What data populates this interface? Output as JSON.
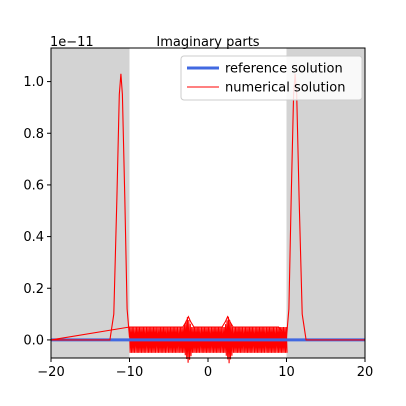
{
  "chart_data": {
    "type": "line",
    "title": "Imaginary parts",
    "xlabel": "",
    "ylabel": "",
    "scale_label": "1e−11",
    "xlim": [
      -20,
      20
    ],
    "ylim": [
      -0.07,
      1.13
    ],
    "xticks": [
      -20,
      -10,
      0,
      10,
      20
    ],
    "xtick_labels": [
      "−20",
      "−10",
      "0",
      "10",
      "20"
    ],
    "yticks": [
      0.0,
      0.2,
      0.4,
      0.6,
      0.8,
      1.0
    ],
    "ytick_labels": [
      "0.0",
      "0.2",
      "0.4",
      "0.6",
      "0.8",
      "1.0"
    ],
    "shaded_regions": [
      [
        -20,
        -10
      ],
      [
        10,
        20
      ]
    ],
    "shade_color": "#d3d3d3",
    "legend_position": "top-right",
    "series": [
      {
        "name": "reference solution",
        "color": "#4169e1",
        "x": [
          -20,
          20
        ],
        "y": [
          0,
          0
        ]
      },
      {
        "name": "numerical solution",
        "color": "#ff0000",
        "x": [
          -20,
          -12.5,
          -12.0,
          -11.6,
          -11.3,
          -11.1,
          -10.9,
          -10.6,
          -10.3,
          -10.0,
          -20,
          -10.0,
          -9.0,
          -8.0,
          -7.0,
          -6.0,
          -5.0,
          -4.0,
          -3.2,
          -2.8,
          -2.5,
          -2.2,
          -1.8,
          -1.0,
          0.0,
          1.0,
          1.8,
          2.2,
          2.5,
          2.8,
          3.2,
          4.0,
          5.0,
          6.0,
          7.0,
          8.0,
          9.0,
          10.0,
          10.3,
          10.6,
          10.9,
          11.1,
          11.3,
          11.6,
          12.0,
          12.5,
          20
        ],
        "y": [
          0,
          0,
          0.1,
          0.55,
          0.95,
          1.03,
          0.95,
          0.55,
          0.12,
          0.01,
          0,
          0.05,
          0.05,
          0.05,
          0.05,
          0.05,
          0.05,
          0.05,
          0.05,
          0.07,
          0.09,
          0.07,
          0.05,
          0.05,
          0.05,
          0.05,
          0.05,
          0.07,
          0.09,
          0.07,
          0.05,
          0.05,
          0.05,
          0.05,
          0.05,
          0.05,
          0.05,
          0.01,
          0.12,
          0.55,
          0.95,
          1.03,
          0.95,
          0.55,
          0.1,
          0,
          0
        ]
      }
    ]
  }
}
